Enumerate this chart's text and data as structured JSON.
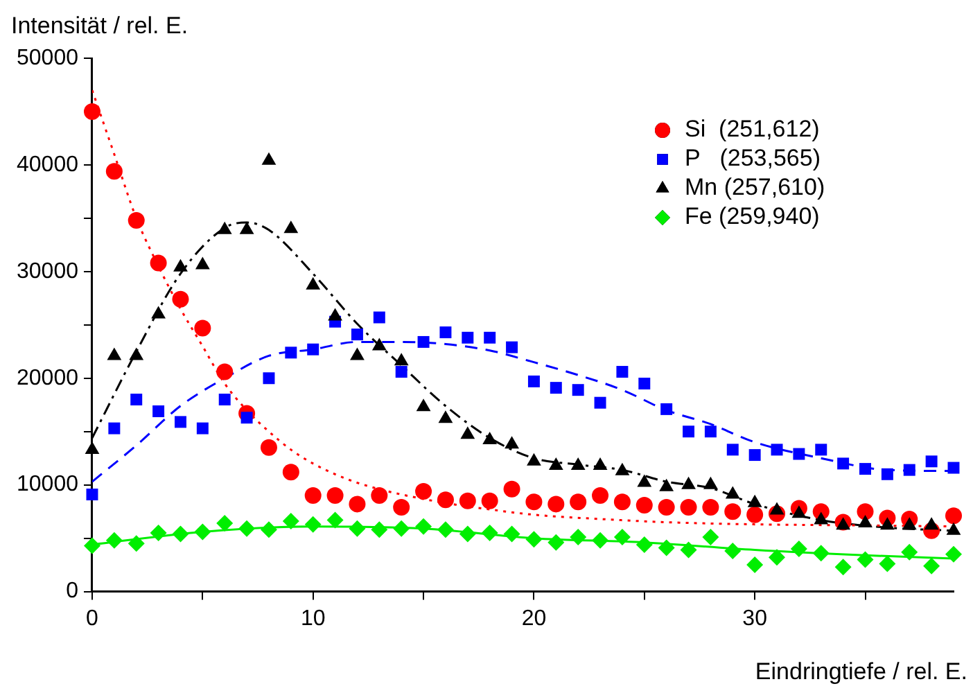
{
  "chart_data": {
    "type": "scatter",
    "xlabel": "Eindringtiefe / rel. E.",
    "ylabel": "Intensität / rel. E.",
    "x": [
      0,
      1,
      2,
      3,
      4,
      5,
      6,
      7,
      8,
      9,
      10,
      11,
      12,
      13,
      14,
      15,
      16,
      17,
      18,
      19,
      20,
      21,
      22,
      23,
      24,
      25,
      26,
      27,
      28,
      29,
      30,
      31,
      32,
      33,
      34,
      35,
      36,
      37,
      38,
      39
    ],
    "xlim": [
      0,
      39
    ],
    "xticks": [
      0,
      {
        "value": 5,
        "label": null
      },
      10,
      {
        "value": 15,
        "label": null
      },
      20,
      {
        "value": 25,
        "label": null
      },
      30,
      {
        "value": 35,
        "label": null
      }
    ],
    "ylim": [
      0,
      50000
    ],
    "yticks": [
      0,
      {
        "value": 5000,
        "label": null
      },
      10000,
      {
        "value": 15000,
        "label": null
      },
      20000,
      {
        "value": 25000,
        "label": null
      },
      30000,
      {
        "value": 35000,
        "label": null
      },
      40000,
      {
        "value": 45000,
        "label": null
      },
      50000
    ],
    "grid": false,
    "legend": "top right",
    "series": [
      {
        "name": "Si  (251,612)",
        "color": "#ff0000",
        "marker": "circle",
        "values": [
          45000,
          39400,
          34800,
          30800,
          27400,
          24700,
          20600,
          16700,
          13500,
          11200,
          9000,
          9000,
          8200,
          9000,
          7900,
          9400,
          8600,
          8500,
          8500,
          9600,
          8400,
          8200,
          8400,
          9000,
          8400,
          8100,
          7900,
          7900,
          7900,
          7500,
          7200,
          7300,
          7800,
          7500,
          6500,
          7500,
          6900,
          6800,
          5700,
          7100
        ]
      },
      {
        "name": "P   (253,565)",
        "color": "#0000ff",
        "marker": "square",
        "values": [
          9100,
          15300,
          18000,
          16900,
          15900,
          15300,
          18000,
          16300,
          20000,
          22400,
          22700,
          25300,
          24100,
          25700,
          20600,
          23400,
          24300,
          23800,
          23800,
          22900,
          19700,
          19100,
          18900,
          17700,
          20600,
          19500,
          17100,
          15000,
          15000,
          13300,
          12800,
          13300,
          12900,
          13300,
          12000,
          11500,
          11000,
          11400,
          12200,
          11600
        ]
      },
      {
        "name": "Mn (257,610)",
        "color": "#000000",
        "marker": "triangle",
        "values": [
          13300,
          22100,
          22100,
          26000,
          30400,
          30600,
          33900,
          33900,
          40400,
          34000,
          28700,
          25800,
          22100,
          23000,
          21600,
          17300,
          16200,
          14700,
          14200,
          13800,
          12200,
          11800,
          11800,
          11800,
          11300,
          10200,
          9800,
          10000,
          10000,
          9100,
          8300,
          7600,
          7300,
          6700,
          6200,
          6400,
          6200,
          6200,
          6200,
          5700
        ]
      },
      {
        "name": "Fe (259,940)",
        "color": "#00ee00",
        "marker": "diamond",
        "values": [
          4300,
          4800,
          4500,
          5500,
          5400,
          5600,
          6400,
          5900,
          5800,
          6600,
          6300,
          6700,
          5900,
          5800,
          5900,
          6100,
          5800,
          5400,
          5500,
          5400,
          4900,
          4600,
          5100,
          4800,
          5100,
          4400,
          4100,
          3900,
          5100,
          3800,
          2500,
          3200,
          4000,
          3600,
          2300,
          3000,
          2600,
          3700,
          2400,
          3500
        ]
      },
      {
        "type": "line",
        "color": "#ff0000",
        "line_style": "dotted",
        "x": [
          0,
          1,
          2,
          3,
          4,
          5,
          6,
          7,
          8,
          9,
          10,
          11,
          12,
          13,
          14,
          16,
          18,
          20,
          23,
          26,
          30,
          35,
          39
        ],
        "values": [
          47000,
          41000,
          35000,
          30500,
          26500,
          23000,
          19500,
          17000,
          15000,
          13300,
          12000,
          11000,
          10200,
          9600,
          9100,
          8300,
          7700,
          7200,
          6800,
          6500,
          6300,
          6200,
          6100
        ]
      },
      {
        "type": "line",
        "color": "#0000ff",
        "line_style": "dashed",
        "x": [
          0,
          2,
          4,
          6,
          8,
          10,
          12,
          14,
          16,
          18,
          20,
          22,
          24,
          26,
          28,
          30,
          33,
          36,
          39
        ],
        "values": [
          10300,
          13700,
          17400,
          20000,
          22100,
          22700,
          23400,
          23400,
          23200,
          22600,
          21500,
          20300,
          18900,
          17000,
          15700,
          14000,
          12500,
          11400,
          11300
        ]
      },
      {
        "type": "line",
        "color": "#000000",
        "line_style": "dashdot",
        "x": [
          0,
          2,
          4,
          6,
          7,
          8,
          10,
          12,
          14,
          16,
          18,
          20,
          22,
          24,
          26,
          28,
          30,
          33,
          36,
          39
        ],
        "values": [
          14400,
          22500,
          29800,
          34100,
          34600,
          33900,
          29800,
          25100,
          21200,
          17400,
          14400,
          12500,
          11900,
          11400,
          10300,
          9700,
          8200,
          6700,
          6000,
          5700
        ]
      },
      {
        "type": "line",
        "color": "#00ee00",
        "line_style": "solid",
        "x": [
          0,
          5,
          10,
          15,
          20,
          25,
          30,
          35,
          39
        ],
        "values": [
          4400,
          5600,
          6100,
          5900,
          5000,
          4600,
          3900,
          3400,
          3100
        ]
      }
    ]
  }
}
